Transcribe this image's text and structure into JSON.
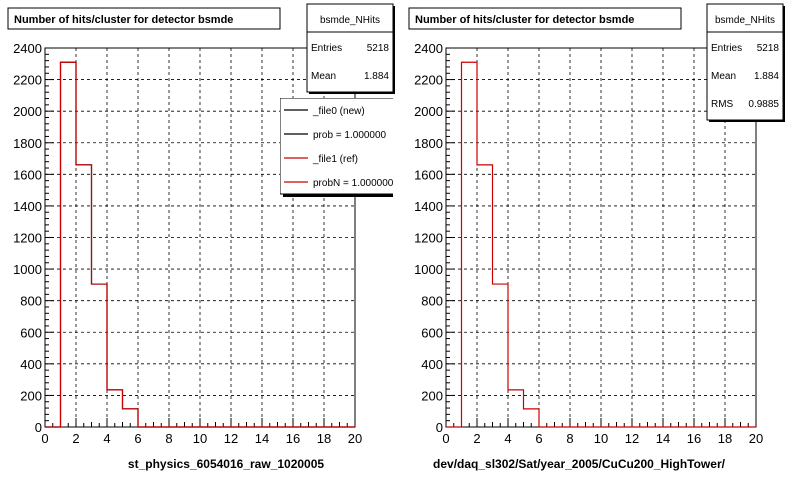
{
  "panels": [
    {
      "title": "Number of hits/cluster for detector bsmde",
      "stats": {
        "name": "bsmde_NHits",
        "rows": [
          {
            "label": "Entries",
            "value": "5218"
          },
          {
            "label": "Mean",
            "value": "1.884"
          }
        ]
      },
      "legend": [
        {
          "text": "_file0 (new)",
          "color": "#000000"
        },
        {
          "text": "prob = 1.000000",
          "color": "#000000"
        },
        {
          "text": "_file1 (ref)",
          "color": "#cc0000"
        },
        {
          "text": "probN = 1.000000",
          "color": "#cc0000"
        }
      ],
      "xlabel": "st_physics_6054016_raw_1020005"
    },
    {
      "title": "Number of hits/cluster for detector bsmde",
      "stats": {
        "name": "bsmde_NHits",
        "rows": [
          {
            "label": "Entries",
            "value": "5218"
          },
          {
            "label": "Mean",
            "value": "1.884"
          },
          {
            "label": "RMS",
            "value": "0.9885"
          }
        ]
      },
      "legend": [],
      "xlabel": "dev/daq_sl302/Sat/year_2005/CuCu200_HighTower/"
    }
  ],
  "chart_data": [
    {
      "type": "bar",
      "title": "Number of hits/cluster for detector bsmde",
      "xlabel": "st_physics_6054016_raw_1020005",
      "ylabel": "",
      "xlim": [
        0,
        20
      ],
      "ylim": [
        0,
        2400
      ],
      "grid": true,
      "bin_edges": [
        1,
        2,
        3,
        4,
        5,
        6
      ],
      "series": [
        {
          "name": "_file0 (new)",
          "color": "#000000",
          "values": [
            2310,
            1660,
            905,
            235,
            115
          ]
        },
        {
          "name": "_file1 (ref)",
          "color": "#cc0000",
          "values": [
            2310,
            1660,
            905,
            235,
            115
          ]
        }
      ]
    },
    {
      "type": "bar",
      "title": "Number of hits/cluster for detector bsmde",
      "xlabel": "dev/daq_sl302/Sat/year_2005/CuCu200_HighTower/",
      "ylabel": "",
      "xlim": [
        0,
        20
      ],
      "ylim": [
        0,
        2400
      ],
      "grid": true,
      "bin_edges": [
        1,
        2,
        3,
        4,
        5,
        6
      ],
      "series": [
        {
          "color": "#cc0000",
          "values": [
            2310,
            1660,
            905,
            235,
            115
          ]
        }
      ]
    }
  ],
  "axis": {
    "xticks": [
      "0",
      "2",
      "4",
      "6",
      "8",
      "10",
      "12",
      "14",
      "16",
      "18",
      "20"
    ],
    "yticks": [
      "0",
      "200",
      "400",
      "600",
      "800",
      "1000",
      "1200",
      "1400",
      "1600",
      "1800",
      "2000",
      "2200",
      "2400"
    ]
  }
}
